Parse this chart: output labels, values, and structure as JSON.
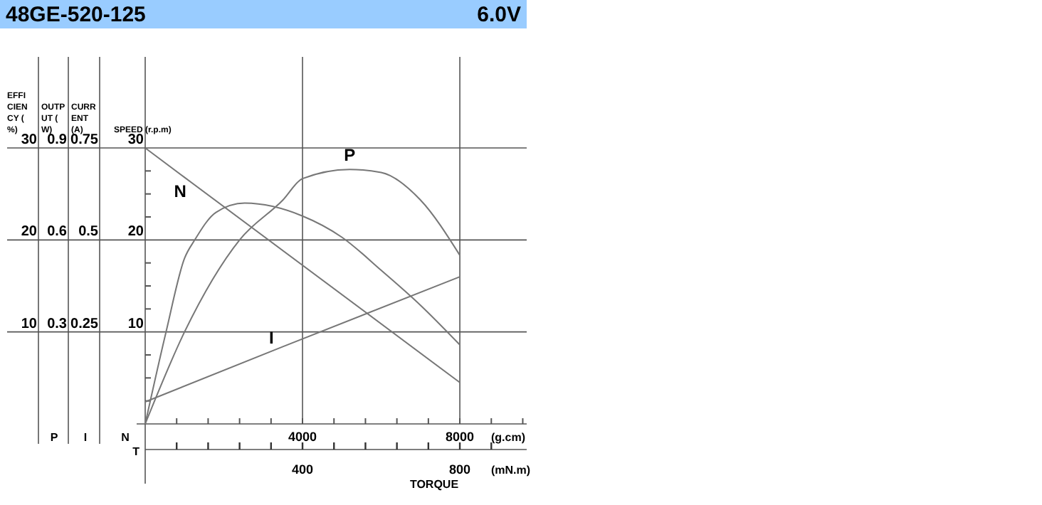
{
  "chart_data": {
    "type": "line",
    "title": "48GE-520-125",
    "subtitle": "6.0V",
    "xlabel": "TORQUE",
    "ylabel": "EFFICIENCY (%)",
    "y2label": "OUTPUT (W)",
    "y3label": "CURRENT (A)",
    "annotations": [
      "(g.cm)",
      "(mN.m)",
      "P",
      "I",
      "N",
      "T",
      "SPEED (r.p.m)",
      "10",
      "20",
      "30"
    ],
    "xlim": [
      0,
      9700
    ],
    "xticks": [
      {
        "value": 800,
        "label": null
      },
      {
        "value": 1600,
        "label": null
      },
      {
        "value": 2400,
        "label": null
      },
      {
        "value": 3200,
        "label": null
      },
      4000,
      {
        "value": 4800,
        "label": null
      },
      {
        "value": 5600,
        "label": null
      },
      {
        "value": 6400,
        "label": null
      },
      {
        "value": 7200,
        "label": null
      },
      8000,
      {
        "value": 8800,
        "label": null
      },
      {
        "value": 9600,
        "label": null
      }
    ],
    "x2lim": [
      0,
      970
    ],
    "x2ticks": [
      {
        "value": 80,
        "label": null
      },
      {
        "value": 160,
        "label": null
      },
      {
        "value": 240,
        "label": null
      },
      {
        "value": 320,
        "label": null
      },
      400,
      {
        "value": 480,
        "label": null
      },
      {
        "value": 560,
        "label": null
      },
      {
        "value": 640,
        "label": null
      },
      {
        "value": 720,
        "label": null
      },
      800,
      {
        "value": 880,
        "label": null
      }
    ],
    "y2lim": [
      0,
      0.9
    ],
    "y2ticks": [
      0.3,
      0.6,
      0.9
    ],
    "y3lim": [
      0,
      0.75
    ],
    "y3ticks": [
      0.25,
      0.5,
      0.75
    ],
    "ylim": [
      0,
      30
    ],
    "yticks": [
      {
        "value": 2.5,
        "label": null
      },
      {
        "value": 5,
        "label": null
      },
      {
        "value": 7.5,
        "label": null
      },
      10,
      {
        "value": 12.5,
        "label": null
      },
      {
        "value": 15,
        "label": null
      },
      {
        "value": 17.5,
        "label": null
      },
      20,
      {
        "value": 22.5,
        "label": null
      },
      {
        "value": 25,
        "label": null
      },
      {
        "value": 27.5,
        "label": null
      },
      30
    ],
    "grid": true,
    "marker": "none",
    "line_style": "solid",
    "series": [
      {
        "color": "#777777",
        "x": [
          0,
          530,
          1000,
          1260,
          1800,
          2530,
          4000,
          5000,
          6000,
          7000,
          8000
        ],
        "values": [
          0,
          10,
          18,
          20,
          23,
          24,
          22.6,
          20.3,
          16.7,
          12.9,
          8.6
        ]
      },
      {
        "name": "P",
        "axis": "y2",
        "color": "#777777",
        "x": [
          0,
          1000,
          2400,
          3500,
          4000,
          5200,
          6000,
          7000,
          8000
        ],
        "values": [
          0,
          0.3,
          0.6,
          0.73,
          0.8,
          0.83,
          0.82,
          0.73,
          0.55
        ]
      },
      {
        "name": "I",
        "axis": "y3",
        "color": "#777777",
        "x": [
          0,
          3500,
          8000
        ],
        "values": [
          0.06,
          0.21,
          0.4
        ]
      },
      {
        "name": "N",
        "color": "#777777",
        "x": [
          0,
          1000,
          8000
        ],
        "values": [
          30,
          26.8,
          4.5
        ]
      }
    ]
  }
}
